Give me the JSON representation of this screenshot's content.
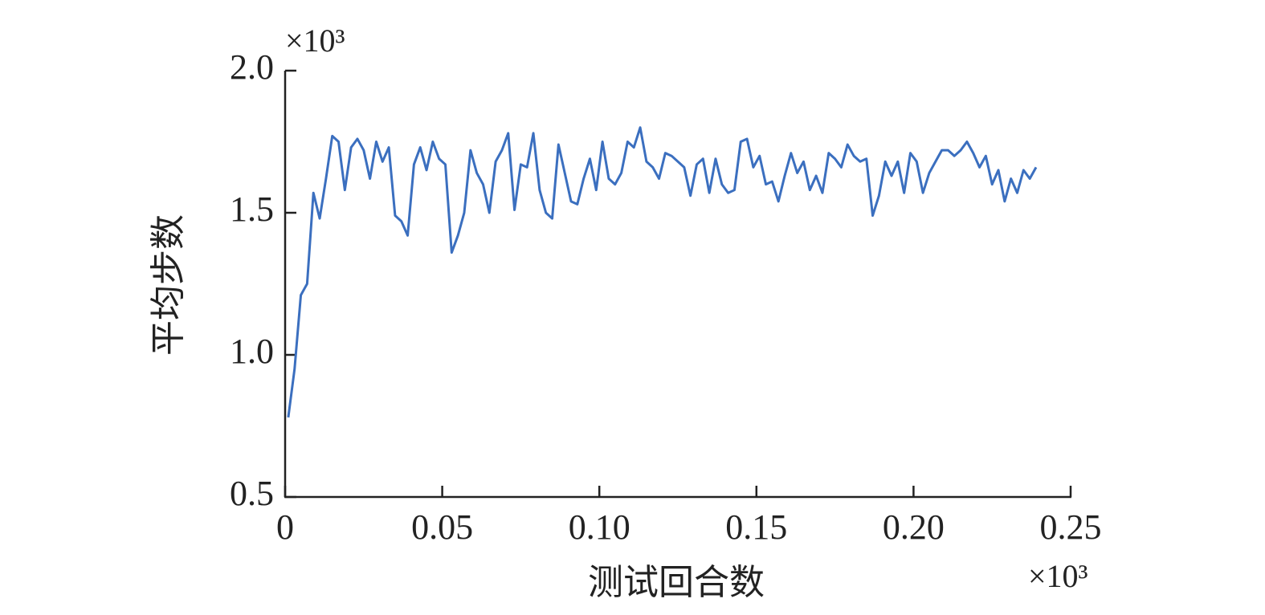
{
  "chart_data": {
    "type": "line",
    "y_label": "平均步数",
    "x_label": "测试回合数",
    "y_multiplier": "×10³",
    "x_multiplier": "×10³",
    "x": [
      0.001,
      0.003,
      0.005,
      0.007,
      0.009,
      0.011,
      0.013,
      0.015,
      0.017,
      0.019,
      0.021,
      0.023,
      0.025,
      0.027,
      0.029,
      0.031,
      0.033,
      0.035,
      0.037,
      0.039,
      0.041,
      0.043,
      0.045,
      0.047,
      0.049,
      0.051,
      0.053,
      0.055,
      0.057,
      0.059,
      0.061,
      0.063,
      0.065,
      0.067,
      0.069,
      0.071,
      0.073,
      0.075,
      0.077,
      0.079,
      0.081,
      0.083,
      0.085,
      0.087,
      0.089,
      0.091,
      0.093,
      0.095,
      0.097,
      0.099,
      0.101,
      0.103,
      0.105,
      0.107,
      0.109,
      0.111,
      0.113,
      0.115,
      0.117,
      0.119,
      0.121,
      0.123,
      0.125,
      0.127,
      0.129,
      0.131,
      0.133,
      0.135,
      0.137,
      0.139,
      0.141,
      0.143,
      0.145,
      0.147,
      0.149,
      0.151,
      0.153,
      0.155,
      0.157,
      0.159,
      0.161,
      0.163,
      0.165,
      0.167,
      0.169,
      0.171,
      0.173,
      0.175,
      0.177,
      0.179,
      0.181,
      0.183,
      0.185,
      0.187,
      0.189,
      0.191,
      0.193,
      0.195,
      0.197,
      0.199,
      0.201,
      0.203,
      0.205,
      0.207,
      0.209,
      0.211,
      0.213,
      0.215,
      0.217,
      0.219,
      0.221,
      0.223,
      0.225,
      0.227,
      0.229,
      0.231,
      0.233,
      0.235,
      0.237,
      0.239
    ],
    "series": [
      {
        "name": "平均步数",
        "color": "#3b6fbf",
        "values": [
          0.78,
          0.95,
          1.21,
          1.25,
          1.57,
          1.48,
          1.62,
          1.77,
          1.75,
          1.58,
          1.73,
          1.76,
          1.72,
          1.62,
          1.75,
          1.68,
          1.73,
          1.49,
          1.47,
          1.42,
          1.67,
          1.73,
          1.65,
          1.75,
          1.69,
          1.67,
          1.36,
          1.42,
          1.5,
          1.72,
          1.64,
          1.6,
          1.5,
          1.68,
          1.72,
          1.78,
          1.51,
          1.67,
          1.66,
          1.78,
          1.58,
          1.5,
          1.48,
          1.74,
          1.64,
          1.54,
          1.53,
          1.62,
          1.69,
          1.58,
          1.75,
          1.62,
          1.6,
          1.64,
          1.75,
          1.73,
          1.8,
          1.68,
          1.66,
          1.62,
          1.71,
          1.7,
          1.68,
          1.66,
          1.56,
          1.67,
          1.69,
          1.57,
          1.69,
          1.6,
          1.57,
          1.58,
          1.75,
          1.76,
          1.66,
          1.7,
          1.6,
          1.61,
          1.54,
          1.63,
          1.71,
          1.64,
          1.68,
          1.58,
          1.63,
          1.57,
          1.71,
          1.69,
          1.66,
          1.74,
          1.7,
          1.68,
          1.69,
          1.49,
          1.56,
          1.68,
          1.63,
          1.68,
          1.57,
          1.71,
          1.68,
          1.57,
          1.64,
          1.68,
          1.72,
          1.72,
          1.7,
          1.72,
          1.75,
          1.71,
          1.66,
          1.7,
          1.6,
          1.65,
          1.54,
          1.62,
          1.57,
          1.65,
          1.62,
          1.66
        ]
      }
    ],
    "xlim": [
      0,
      0.25
    ],
    "xticks": [
      0,
      0.05,
      {
        "value": 0.1,
        "label": "0.10"
      },
      0.15,
      {
        "value": 0.2,
        "label": "0.20"
      },
      0.25
    ],
    "ylim": [
      0.5,
      2.0
    ],
    "yticks": [
      0.5,
      {
        "value": 1.0,
        "label": "1.0"
      },
      1.5,
      {
        "value": 2.0,
        "label": "2.0"
      }
    ],
    "grid": false
  }
}
